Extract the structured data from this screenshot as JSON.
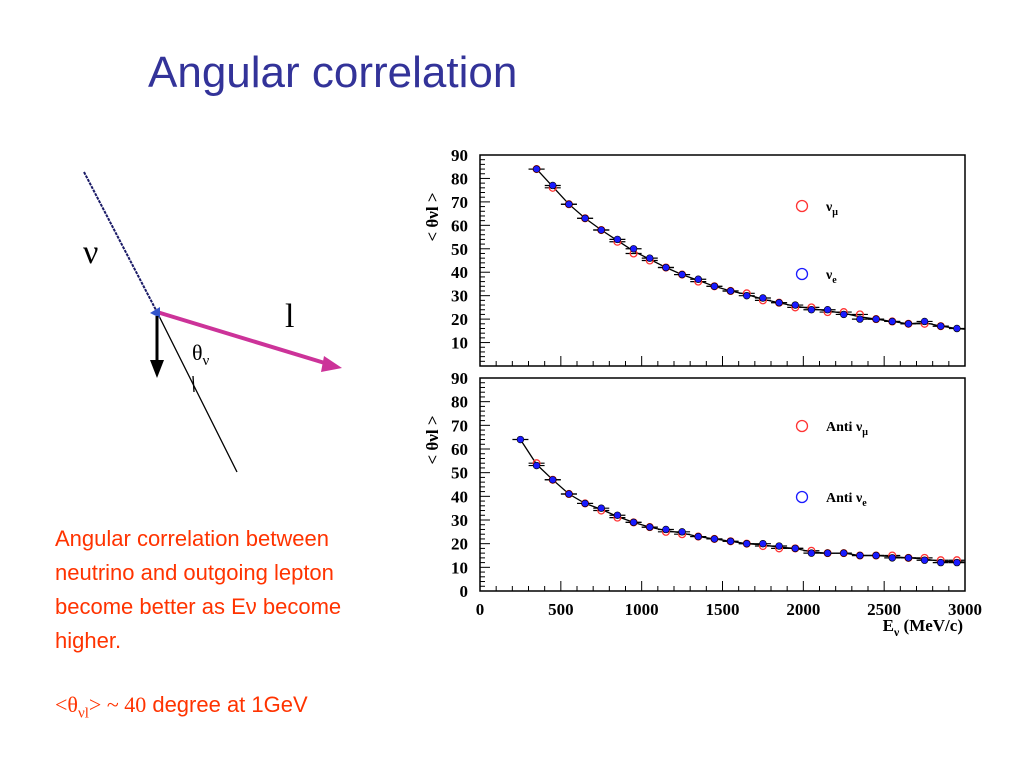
{
  "slide": {
    "title": "Angular correlation",
    "caption_lines": [
      "Angular correlation between",
      "neutrino and outgoing lepton",
      "become better as Eν become",
      "higher."
    ],
    "note": {
      "left": "<θ",
      "sub": "νl",
      "right": "> ~ 40",
      "tail": " degree at 1GeV"
    },
    "text_color": "#ff3300",
    "title_color": "#333399"
  },
  "diagram": {
    "neutrino_label": "ν",
    "lepton_label": "l",
    "angle_label": "θ",
    "angle_sub": "ν",
    "lepton_arrow_color": "#cc3399"
  },
  "chart_data": [
    {
      "type": "scatter",
      "title": "",
      "xlabel": "",
      "ylabel": "< θνl >",
      "xlim": [
        0,
        3000
      ],
      "ylim": [
        0,
        90
      ],
      "x_ticks": [
        "0",
        "500",
        "1000",
        "1500",
        "2000",
        "2500",
        "3000"
      ],
      "y_ticks": [
        "10",
        "20",
        "30",
        "40",
        "50",
        "60",
        "70",
        "80",
        "90"
      ],
      "y_ticks_drawn": [
        0,
        10,
        20,
        30,
        40,
        50,
        60,
        70,
        80,
        90
      ],
      "legend_position": "right",
      "series": [
        {
          "name": "νμ",
          "legend_main": "ν",
          "legend_sub": "μ",
          "marker": "open-circle",
          "color": "#ff3333",
          "x": [
            350,
            450,
            550,
            650,
            750,
            850,
            950,
            1050,
            1150,
            1250,
            1350,
            1450,
            1550,
            1650,
            1750,
            1850,
            1950,
            2050,
            2150,
            2250,
            2350,
            2450,
            2550,
            2650,
            2750,
            2850
          ],
          "y": [
            84,
            76,
            69,
            63,
            58,
            53,
            48,
            45,
            42,
            39,
            36,
            34,
            32,
            31,
            28,
            27,
            25,
            25,
            23,
            23,
            22,
            20,
            19,
            18,
            18,
            17
          ]
        },
        {
          "name": "νe",
          "legend_main": "ν",
          "legend_sub": "e",
          "marker": "filled-circle",
          "color": "#1a1aff",
          "x": [
            350,
            450,
            550,
            650,
            750,
            850,
            950,
            1050,
            1150,
            1250,
            1350,
            1450,
            1550,
            1650,
            1750,
            1850,
            1950,
            2050,
            2150,
            2250,
            2350,
            2450,
            2550,
            2650,
            2750,
            2850,
            2950
          ],
          "y": [
            84,
            77,
            69,
            63,
            58,
            54,
            50,
            46,
            42,
            39,
            37,
            34,
            32,
            30,
            29,
            27,
            26,
            24,
            24,
            22,
            20,
            20,
            19,
            18,
            19,
            17,
            16
          ]
        }
      ],
      "fit": "black line through points"
    },
    {
      "type": "scatter",
      "title": "",
      "xlabel": "Eν (MeV/c)",
      "xlabel_main": "E",
      "xlabel_sub": "ν",
      "xlabel_rest": " (MeV/c)",
      "ylabel": "< θνl >",
      "xlim": [
        0,
        3000
      ],
      "ylim": [
        0,
        90
      ],
      "x_ticks": [
        "0",
        "500",
        "1000",
        "1500",
        "2000",
        "2500",
        "3000"
      ],
      "y_ticks": [
        "0",
        "10",
        "20",
        "30",
        "40",
        "50",
        "60",
        "70",
        "80",
        "90"
      ],
      "legend_position": "right",
      "series": [
        {
          "name": "Anti νμ",
          "legend_main": "Anti ν",
          "legend_sub": "μ",
          "marker": "open-circle",
          "color": "#ff3333",
          "x": [
            350,
            450,
            550,
            650,
            750,
            850,
            950,
            1050,
            1150,
            1250,
            1350,
            1450,
            1550,
            1650,
            1750,
            1850,
            1950,
            2050,
            2150,
            2250,
            2350,
            2450,
            2550,
            2650,
            2750,
            2850,
            2950
          ],
          "y": [
            54,
            47,
            41,
            37,
            34,
            31,
            29,
            27,
            25,
            24,
            23,
            22,
            21,
            20,
            19,
            18,
            18,
            17,
            16,
            16,
            15,
            15,
            15,
            14,
            14,
            13,
            13
          ]
        },
        {
          "name": "Anti νe",
          "legend_main": "Anti ν",
          "legend_sub": "e",
          "marker": "filled-circle",
          "color": "#1a1aff",
          "x": [
            250,
            350,
            450,
            550,
            650,
            750,
            850,
            950,
            1050,
            1150,
            1250,
            1350,
            1450,
            1550,
            1650,
            1750,
            1850,
            1950,
            2050,
            2150,
            2250,
            2350,
            2450,
            2550,
            2650,
            2750,
            2850,
            2950
          ],
          "y": [
            64,
            53,
            47,
            41,
            37,
            35,
            32,
            29,
            27,
            26,
            25,
            23,
            22,
            21,
            20,
            20,
            19,
            18,
            16,
            16,
            16,
            15,
            15,
            14,
            14,
            13,
            12,
            12
          ]
        }
      ],
      "fit": "black line through points"
    }
  ]
}
